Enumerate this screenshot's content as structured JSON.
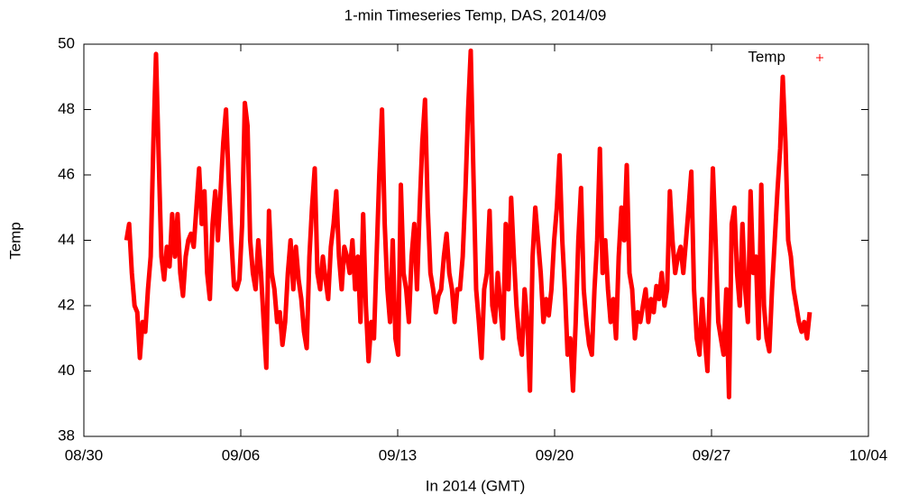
{
  "chart_data": {
    "type": "line",
    "title": "1-min Timeseries Temp, DAS, 2014/09",
    "x_label": "In 2014 (GMT)",
    "y_label": "Temp",
    "legend": "top-right",
    "xlim": [
      0,
      35
    ],
    "xticks": [
      {
        "value": 0,
        "label": "08/30"
      },
      {
        "value": 7,
        "label": "09/06"
      },
      {
        "value": 14,
        "label": "09/13"
      },
      {
        "value": 21,
        "label": "09/20"
      },
      {
        "value": 28,
        "label": "09/27"
      },
      {
        "value": 35,
        "label": "10/04"
      }
    ],
    "ylim": [
      38,
      50
    ],
    "yticks": [
      38,
      40,
      42,
      44,
      46,
      48,
      50
    ],
    "x": [
      1.9,
      2.02,
      2.14,
      2.26,
      2.38,
      2.5,
      2.62,
      2.74,
      2.86,
      2.98,
      3.1,
      3.22,
      3.34,
      3.46,
      3.58,
      3.7,
      3.82,
      3.94,
      4.06,
      4.18,
      4.3,
      4.42,
      4.54,
      4.66,
      4.78,
      4.9,
      5.02,
      5.14,
      5.26,
      5.38,
      5.5,
      5.62,
      5.74,
      5.86,
      5.98,
      6.1,
      6.22,
      6.34,
      6.46,
      6.58,
      6.7,
      6.82,
      6.94,
      7.06,
      7.18,
      7.3,
      7.42,
      7.54,
      7.66,
      7.78,
      7.9,
      8.02,
      8.14,
      8.26,
      8.38,
      8.5,
      8.62,
      8.74,
      8.86,
      8.98,
      9.1,
      9.22,
      9.34,
      9.46,
      9.58,
      9.7,
      9.82,
      9.94,
      10.06,
      10.18,
      10.3,
      10.42,
      10.54,
      10.66,
      10.78,
      10.9,
      11.02,
      11.14,
      11.26,
      11.38,
      11.5,
      11.62,
      11.74,
      11.86,
      11.98,
      12.1,
      12.22,
      12.34,
      12.46,
      12.58,
      12.7,
      12.82,
      12.94,
      13.06,
      13.18,
      13.3,
      13.42,
      13.54,
      13.66,
      13.78,
      13.9,
      14.02,
      14.14,
      14.26,
      14.38,
      14.5,
      14.62,
      14.74,
      14.86,
      14.98,
      15.1,
      15.22,
      15.34,
      15.46,
      15.58,
      15.7,
      15.82,
      15.94,
      16.06,
      16.18,
      16.3,
      16.42,
      16.54,
      16.66,
      16.78,
      16.9,
      17.02,
      17.14,
      17.26,
      17.38,
      17.5,
      17.62,
      17.74,
      17.86,
      17.98,
      18.1,
      18.22,
      18.34,
      18.46,
      18.58,
      18.7,
      18.82,
      18.94,
      19.06,
      19.18,
      19.3,
      19.42,
      19.54,
      19.66,
      19.78,
      19.9,
      20.02,
      20.14,
      20.26,
      20.38,
      20.5,
      20.62,
      20.74,
      20.86,
      20.98,
      21.1,
      21.22,
      21.34,
      21.46,
      21.58,
      21.7,
      21.82,
      21.94,
      22.06,
      22.18,
      22.3,
      22.42,
      22.54,
      22.66,
      22.78,
      22.9,
      23.02,
      23.14,
      23.26,
      23.38,
      23.5,
      23.62,
      23.74,
      23.86,
      23.98,
      24.1,
      24.22,
      24.34,
      24.46,
      24.58,
      24.7,
      24.82,
      24.94,
      25.06,
      25.18,
      25.3,
      25.42,
      25.54,
      25.66,
      25.78,
      25.9,
      26.02,
      26.14,
      26.26,
      26.38,
      26.5,
      26.62,
      26.74,
      26.86,
      26.98,
      27.1,
      27.22,
      27.34,
      27.46,
      27.58,
      27.7,
      27.82,
      27.94,
      28.06,
      28.18,
      28.3,
      28.42,
      28.54,
      28.66,
      28.78,
      28.9,
      29.02,
      29.14,
      29.26,
      29.38,
      29.5,
      29.62,
      29.74,
      29.86,
      29.98,
      30.1,
      30.22,
      30.34,
      30.46,
      30.58,
      30.7,
      30.82,
      30.94,
      31.06,
      31.18,
      31.3,
      31.42,
      31.54,
      31.66,
      31.78,
      31.9,
      32.02,
      32.14,
      32.26,
      32.38
    ],
    "series": [
      {
        "name": "Temp",
        "color": "#ff0000",
        "values": [
          44,
          44.5,
          43,
          42,
          41.8,
          40.4,
          41.5,
          41.2,
          42.5,
          43.5,
          47,
          49.7,
          46.5,
          43.5,
          42.8,
          43.8,
          43.2,
          44.8,
          43.5,
          44.8,
          43,
          42.3,
          43.5,
          44,
          44.2,
          43.8,
          45,
          46.2,
          44.5,
          45.5,
          43,
          42.2,
          44.5,
          45.5,
          44,
          45.5,
          47,
          48,
          45.8,
          44,
          42.6,
          42.5,
          42.8,
          44.5,
          48.2,
          47.5,
          44,
          43,
          42.5,
          44,
          43,
          41.5,
          40.1,
          44.9,
          43,
          42.5,
          41.5,
          41.8,
          40.8,
          41.5,
          43,
          44,
          42.5,
          43.8,
          42.8,
          42.2,
          41.2,
          40.7,
          43.5,
          45,
          46.2,
          43,
          42.5,
          43.5,
          42.8,
          42.2,
          43.8,
          44.5,
          45.5,
          43.5,
          42.5,
          43.8,
          43.5,
          43,
          44,
          42.5,
          43.5,
          41.5,
          44.8,
          42,
          40.3,
          41.5,
          41,
          43.5,
          46,
          48,
          44.5,
          42.5,
          41.5,
          44,
          41,
          40.5,
          45.7,
          43,
          42.5,
          41.5,
          43.5,
          44.5,
          42.5,
          45,
          47,
          48.3,
          45,
          43,
          42.5,
          41.8,
          42.3,
          42.5,
          43.5,
          44.2,
          43,
          42.5,
          41.5,
          42.5,
          42.5,
          43.5,
          45.5,
          48,
          49.8,
          46,
          42.5,
          41.5,
          40.4,
          42.5,
          43,
          44.9,
          42,
          41.5,
          43,
          42,
          41,
          44.5,
          42.5,
          45.3,
          43.5,
          42,
          41,
          40.5,
          42.5,
          41.5,
          39.4,
          43.5,
          45,
          44,
          43,
          41.5,
          42.2,
          41.7,
          42.5,
          44,
          45,
          46.6,
          44,
          42.5,
          40.5,
          41,
          39.4,
          41.5,
          44,
          45.6,
          42.5,
          41.5,
          40.8,
          40.5,
          42.5,
          44,
          46.8,
          43,
          44,
          42.5,
          41.5,
          42.2,
          41,
          43.5,
          45,
          44,
          46.3,
          43,
          42.5,
          41,
          41.8,
          41.5,
          42,
          42.5,
          41.5,
          42.2,
          41.8,
          42.6,
          42.2,
          43,
          42,
          42.5,
          45.5,
          44,
          43,
          43.5,
          43.8,
          43,
          44,
          45,
          46.1,
          42.5,
          41,
          40.5,
          42.2,
          41,
          40,
          43,
          46.2,
          44,
          41.5,
          41,
          40.5,
          42.5,
          39.2,
          44.5,
          45,
          43,
          42,
          44.5,
          42.5,
          41.5,
          45.5,
          43,
          43.5,
          41,
          45.7,
          42,
          41,
          40.6,
          42.5,
          44,
          45.5,
          46.8,
          49,
          47,
          44,
          43.5,
          42.5,
          42,
          41.5,
          41.2,
          41.5,
          41,
          41.8
        ]
      }
    ]
  }
}
